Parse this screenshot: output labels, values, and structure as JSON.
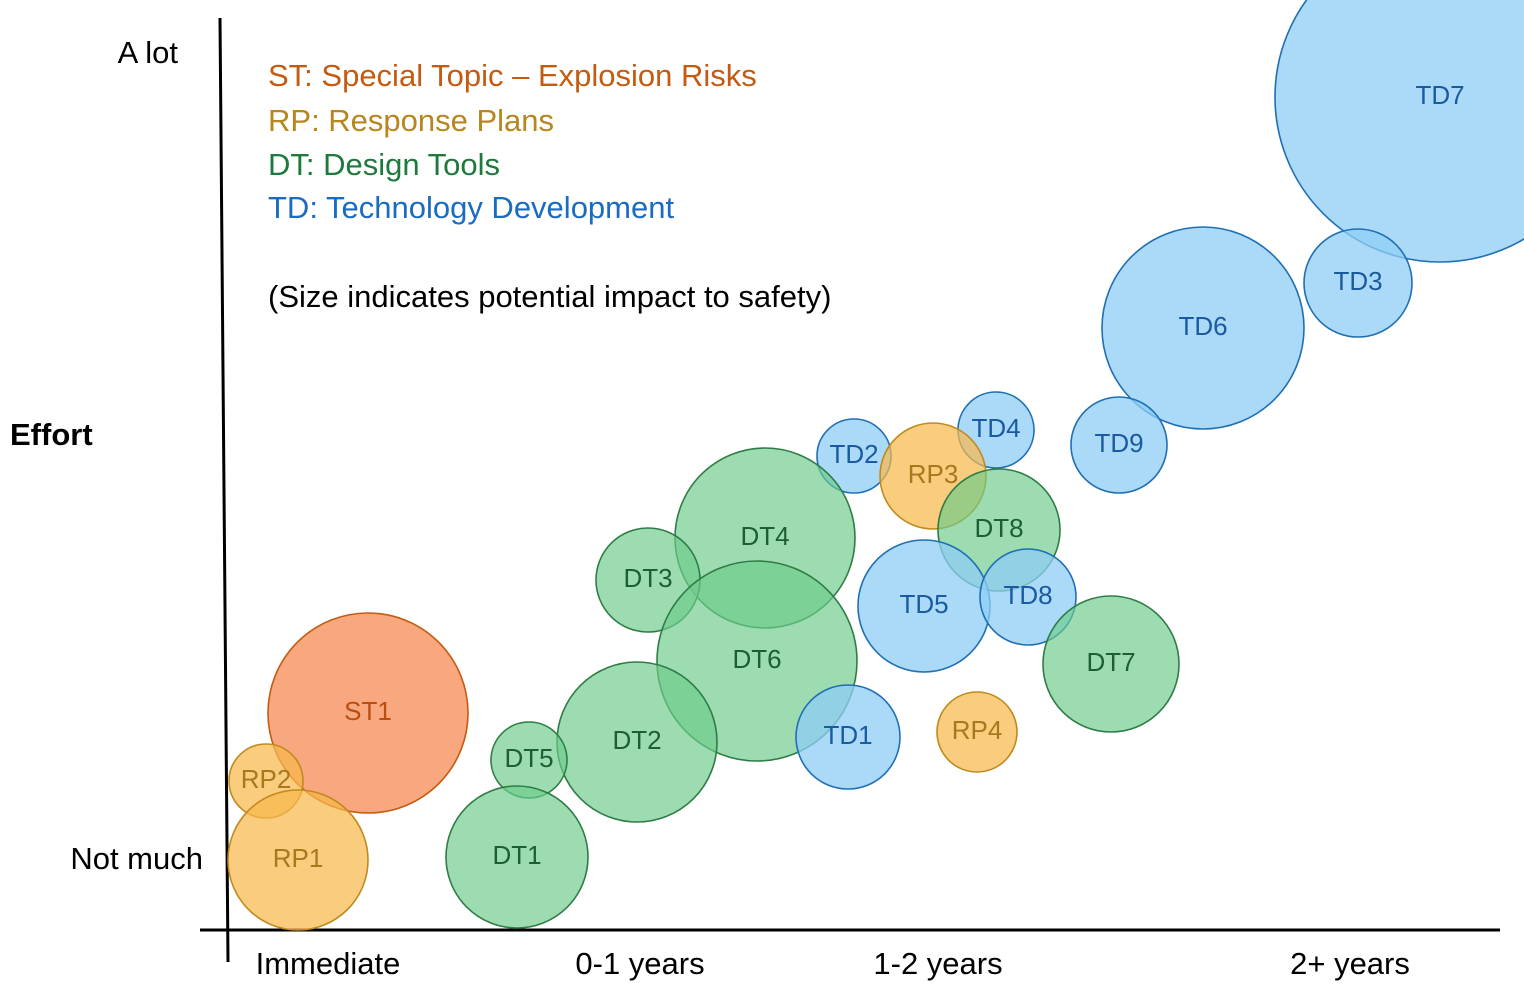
{
  "legend": [
    {
      "text": "ST: Special Topic – Explosion Risks",
      "color": "#c55a11"
    },
    {
      "text": "RP: Response Plans",
      "color": "#b8861e"
    },
    {
      "text": "DT: Design Tools",
      "color": "#1e7a3c"
    },
    {
      "text": "TD: Technology Development",
      "color": "#1a6cc0"
    }
  ],
  "note": "(Size indicates potential impact to safety)",
  "y_axis": {
    "label": "Effort",
    "top": "A lot",
    "bottom": "Not much"
  },
  "x_axis": {
    "categories": [
      "Immediate",
      "0-1 years",
      "1-2 years",
      "2+ years"
    ]
  },
  "nodes": [
    {
      "label": "TD7"
    },
    {
      "label": "TD3"
    },
    {
      "label": "TD6"
    },
    {
      "label": "TD9"
    },
    {
      "label": "TD4"
    },
    {
      "label": "TD2"
    },
    {
      "label": "RP3"
    },
    {
      "label": "DT8"
    },
    {
      "label": "DT4"
    },
    {
      "label": "DT3"
    },
    {
      "label": "TD5"
    },
    {
      "label": "TD8"
    },
    {
      "label": "DT6"
    },
    {
      "label": "DT7"
    },
    {
      "label": "ST1"
    },
    {
      "label": "TD1"
    },
    {
      "label": "RP4"
    },
    {
      "label": "DT2"
    },
    {
      "label": "DT5"
    },
    {
      "label": "RP2"
    },
    {
      "label": "RP1"
    },
    {
      "label": "DT1"
    }
  ]
}
